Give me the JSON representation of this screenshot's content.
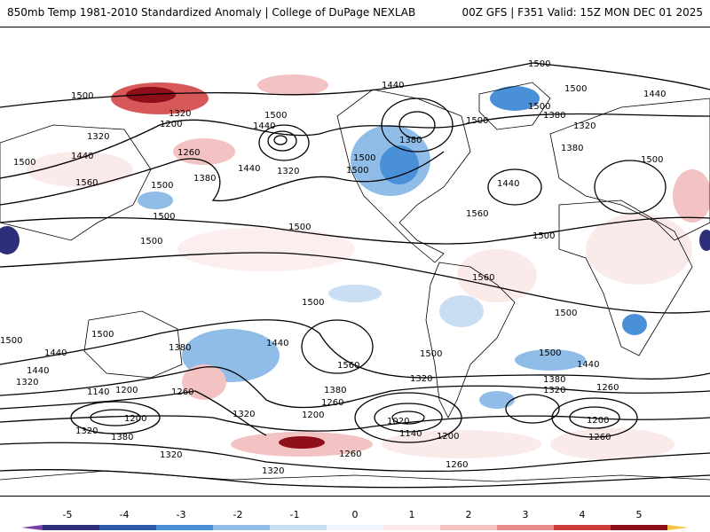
{
  "header": {
    "title_left": "850mb Temp 1981-2010 Standardized Anomaly | College of DuPage NEXLAB",
    "title_right": "00Z GFS | F351 Valid: 15Z MON DEC 01 2025"
  },
  "colorbar": {
    "ticks": [
      "-5",
      "-4",
      "-3",
      "-2",
      "-1",
      "0",
      "1",
      "2",
      "3",
      "4",
      "5"
    ],
    "colors": [
      "#2d2f7a",
      "#2a5aa8",
      "#4a90d9",
      "#8fbde8",
      "#c9def3",
      "#eef4fb",
      "#fbeaea",
      "#f3c2c2",
      "#e88a8a",
      "#cf3b3b",
      "#8e0f1a"
    ],
    "low_end_color": "#7b3fa8",
    "high_end_color": "#f5c542"
  },
  "contour_labels": [
    "1500",
    "1500",
    "1440",
    "1500",
    "1440",
    "1320",
    "1200",
    "1500",
    "1440",
    "1380",
    "1320",
    "1260",
    "1380",
    "1320",
    "1440",
    "1500",
    "1380",
    "1500",
    "1500",
    "1440",
    "1560",
    "1500",
    "1500",
    "1500",
    "1560",
    "1500",
    "1500",
    "1500",
    "1500",
    "1380",
    "1440",
    "1320",
    "1200",
    "1140",
    "1260",
    "1320",
    "1200",
    "1380",
    "1320",
    "1440",
    "1500",
    "1560",
    "1500",
    "1380",
    "1260",
    "1200",
    "1020",
    "1140",
    "1200",
    "1260",
    "1320",
    "1260",
    "1320",
    "1500",
    "1440",
    "1380",
    "1320",
    "1260",
    "1200",
    "1260",
    "1500",
    "1440",
    "1380",
    "1320",
    "1560",
    "1500",
    "1440",
    "1320",
    "1500",
    "1500"
  ]
}
